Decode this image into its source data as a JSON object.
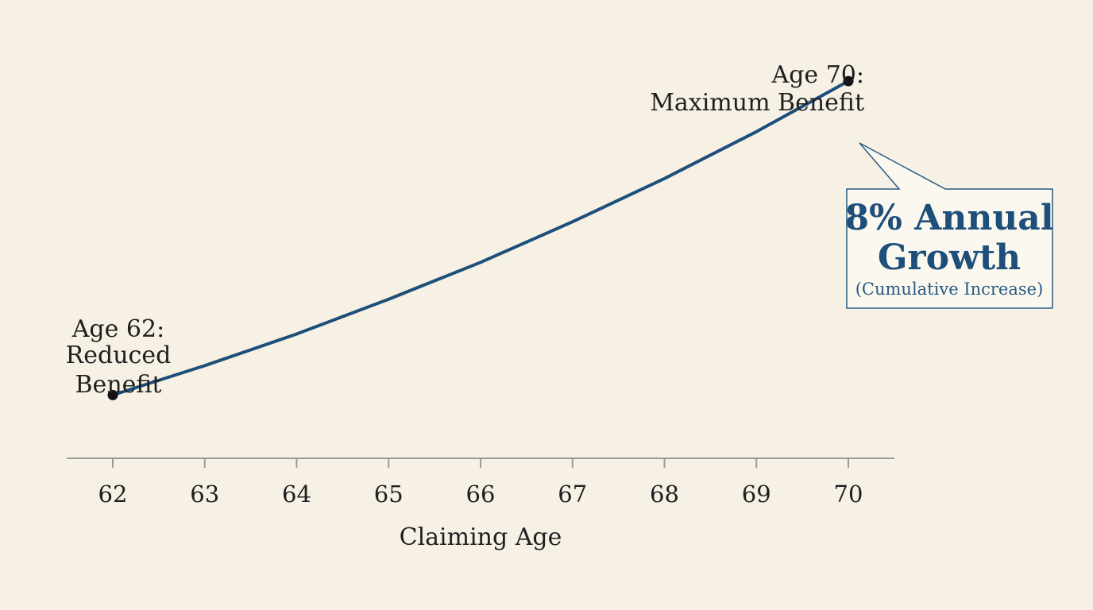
{
  "chart_data": {
    "type": "line",
    "x": [
      62,
      63,
      64,
      65,
      66,
      67,
      68,
      69,
      70
    ],
    "series": [
      {
        "values": [
          70,
          75.6,
          81.6,
          88.2,
          95.2,
          102.9,
          111.1,
          120,
          129.6
        ]
      }
    ],
    "xlabel": "Claiming Age",
    "ylabel": "",
    "xlim": [
      62,
      70
    ],
    "ylim": [
      58,
      145
    ],
    "grid": false,
    "legend": "none",
    "annotations": {
      "start_label": [
        "Age 62:",
        "Reduced",
        "Benefit"
      ],
      "end_label": [
        "Age 70:",
        "Maximum Benefit"
      ],
      "callout_title": [
        "8% Annual",
        "Growth"
      ],
      "callout_subtitle": "(Cumulative Increase)"
    },
    "colors": {
      "line": "#1d4f7a",
      "marker": "#111111",
      "axis": "#9a9a9a",
      "callout_text": "#1d4f7a",
      "callout_border": "#2a5a83",
      "callout_fill": "#fbf8f0",
      "background": "#f6f1e4"
    }
  }
}
